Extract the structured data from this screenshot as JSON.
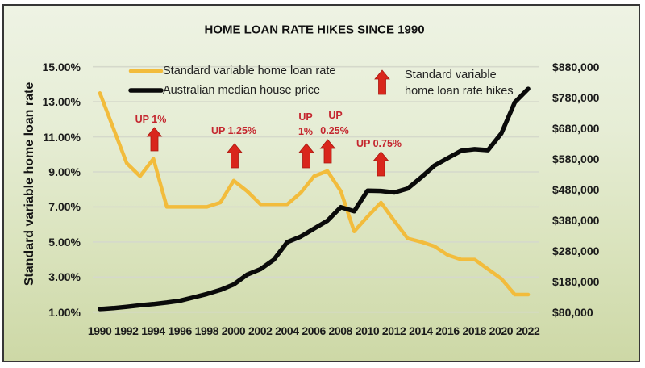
{
  "chart_data": {
    "type": "line",
    "title": "HOME LOAN RATE HIKES SINCE 1990",
    "xlabel": "",
    "ylabel": "Standard variable home loan rate",
    "y2label": "",
    "x": [
      1990,
      1991,
      1992,
      1993,
      1994,
      1995,
      1996,
      1997,
      1998,
      1999,
      2000,
      2001,
      2002,
      2003,
      2004,
      2005,
      2006,
      2007,
      2008,
      2009,
      2010,
      2011,
      2012,
      2013,
      2014,
      2015,
      2016,
      2017,
      2018,
      2019,
      2020,
      2021,
      2022
    ],
    "x_tick_labels": [
      "1990",
      "1992",
      "1994",
      "1996",
      "1998",
      "2000",
      "2002",
      "2004",
      "2006",
      "2008",
      "2010",
      "2012",
      "2014",
      "2016",
      "2018",
      "2020",
      "2022"
    ],
    "ylim": [
      1,
      15
    ],
    "y_tick_labels": [
      "15.00%",
      "13.00%",
      "11.00%",
      "9.00%",
      "7.00%",
      "5.00%",
      "3.00%",
      "1.00%"
    ],
    "y2lim": [
      80000,
      880000
    ],
    "y2_tick_labels": [
      "$880,000",
      "$780,000",
      "$680,000",
      "$580,000",
      "$480,000",
      "$380,000",
      "$280,000",
      "$180,000",
      "$80,000"
    ],
    "grid": true,
    "legend_position": "top-inside",
    "series": [
      {
        "name": "Standard variable home loan rate",
        "axis": "left",
        "unit": "%",
        "color": "#f2bc3c",
        "values": [
          13.5,
          11.5,
          9.5,
          8.75,
          9.75,
          7.0,
          7.0,
          7.0,
          7.0,
          7.25,
          8.5,
          7.9,
          7.15,
          7.15,
          7.15,
          7.8,
          8.75,
          9.05,
          7.9,
          5.6,
          6.45,
          7.25,
          6.2,
          5.2,
          5.0,
          4.75,
          4.25,
          4.0,
          4.0,
          3.45,
          2.9,
          2.0,
          2.0
        ]
      },
      {
        "name": "Australian median house price",
        "axis": "right",
        "unit": "$",
        "color": "#0a0a0a",
        "values": [
          90000,
          93000,
          97000,
          102000,
          106000,
          111000,
          117000,
          128000,
          139000,
          152000,
          170000,
          202000,
          220000,
          251000,
          308000,
          326000,
          352000,
          378000,
          422000,
          409000,
          476000,
          475000,
          470000,
          483000,
          519000,
          558000,
          582000,
          606000,
          611000,
          608000,
          663000,
          764000,
          808000
        ]
      }
    ],
    "legend": {
      "items": [
        {
          "label": "Standard variable home loan rate",
          "color": "#f2bc3c"
        },
        {
          "label": "Australian median house price",
          "color": "#0a0a0a"
        }
      ],
      "hike_marker": {
        "lines": [
          "Standard variable",
          "home loan rate hikes"
        ],
        "color": "#d9261c"
      }
    },
    "annotations": [
      {
        "x_approx": 1994,
        "lines": [
          "UP 1%"
        ]
      },
      {
        "x_approx": 2000,
        "lines": [
          "UP 1.25%"
        ]
      },
      {
        "x_approx": 2005,
        "lines": [
          "UP",
          "1%"
        ]
      },
      {
        "x_approx": 2007,
        "lines": [
          "UP",
          "0.25%"
        ]
      },
      {
        "x_approx": 2011,
        "lines": [
          "UP 0.75%"
        ]
      }
    ],
    "colors": {
      "rate_line": "#f2bc3c",
      "price_line": "#0a0a0a",
      "hike_arrow": "#d9261c",
      "annotation_text": "#c4262e"
    }
  }
}
